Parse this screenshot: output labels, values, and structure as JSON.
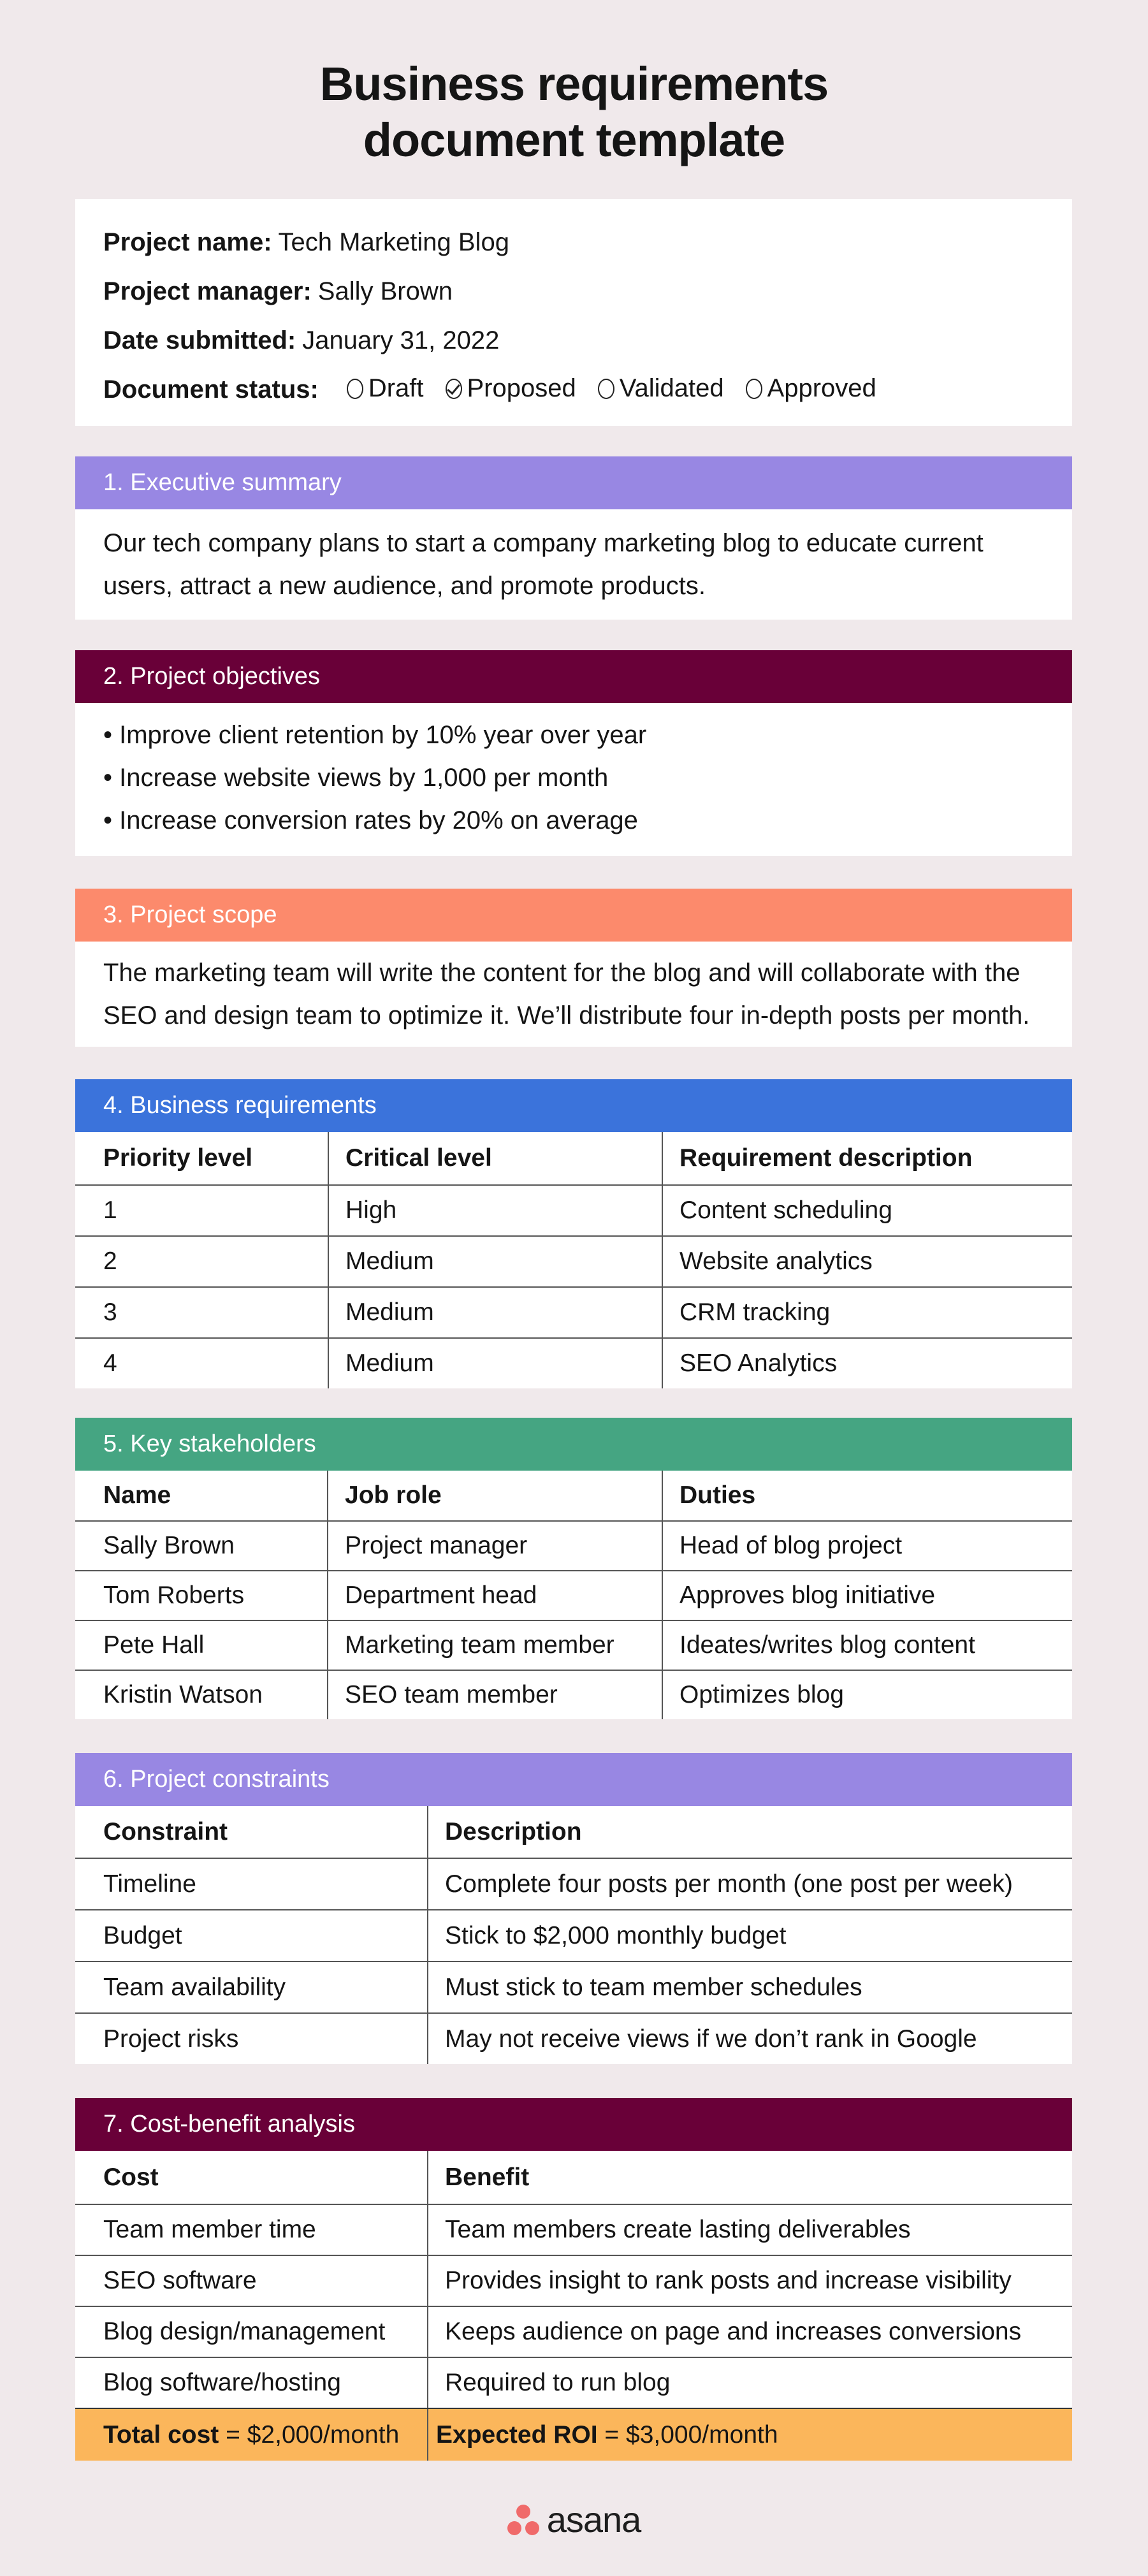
{
  "title_line1": "Business requirements",
  "title_line2": "document template",
  "info": {
    "project_name_label": "Project name:",
    "project_name": "Tech Marketing Blog",
    "manager_label": "Project manager:",
    "manager": "Sally Brown",
    "date_label": "Date submitted:",
    "date": "January 31, 2022",
    "status_label": "Document status:",
    "status_options": [
      {
        "label": "Draft",
        "checked": false
      },
      {
        "label": "Proposed",
        "checked": true
      },
      {
        "label": "Validated",
        "checked": false
      },
      {
        "label": "Approved",
        "checked": false
      }
    ]
  },
  "colors": {
    "lavender": "#9887e3",
    "plum": "#690038",
    "coral": "#fc8a6c",
    "blue": "#3b73db",
    "green": "#45a582",
    "total": "#fbb65b",
    "background": "#f0e9eb"
  },
  "s1": {
    "title": "1. Executive summary",
    "lines": [
      "Our tech company plans to start a company marketing blog to educate current",
      "users, attract a new audience, and promote products."
    ]
  },
  "s2": {
    "title": "2. Project objectives",
    "items": [
      "• Improve client retention by 10% year over year",
      "• Increase website views by 1,000 per month",
      "• Increase conversion rates by 20% on average"
    ]
  },
  "s3": {
    "title": "3. Project scope",
    "lines": [
      "The marketing team will write the content for the blog and will collaborate with the",
      "SEO and design team to optimize it. We’ll distribute four in-depth posts per month."
    ]
  },
  "s4": {
    "title": "4. Business requirements",
    "headers": [
      "Priority level",
      "Critical level",
      "Requirement description"
    ],
    "rows": [
      [
        "1",
        "High",
        "Content scheduling"
      ],
      [
        "2",
        "Medium",
        "Website analytics"
      ],
      [
        "3",
        "Medium",
        "CRM tracking"
      ],
      [
        "4",
        "Medium",
        "SEO Analytics"
      ]
    ]
  },
  "s5": {
    "title": "5. Key stakeholders",
    "headers": [
      "Name",
      "Job role",
      "Duties"
    ],
    "rows": [
      [
        "Sally Brown",
        "Project manager",
        "Head of blog project"
      ],
      [
        "Tom Roberts",
        "Department head",
        "Approves blog initiative"
      ],
      [
        "Pete Hall",
        "Marketing team member",
        "Ideates/writes blog content"
      ],
      [
        "Kristin Watson",
        "SEO team member",
        "Optimizes blog"
      ]
    ]
  },
  "s6": {
    "title": "6. Project constraints",
    "headers": [
      "Constraint",
      "Description"
    ],
    "rows": [
      [
        "Timeline",
        "Complete four posts per month (one post per week)"
      ],
      [
        "Budget",
        "Stick to $2,000 monthly budget"
      ],
      [
        "Team availability",
        "Must stick to team member schedules"
      ],
      [
        "Project risks",
        "May not receive views if we don’t rank in Google"
      ]
    ]
  },
  "s7": {
    "title": "7. Cost-benefit analysis",
    "headers": [
      "Cost",
      "Benefit"
    ],
    "rows": [
      [
        "Team member time",
        "Team members create lasting deliverables"
      ],
      [
        "SEO software",
        "Provides insight to rank posts and increase visibility"
      ],
      [
        "Blog design/management",
        "Keeps audience on page and increases conversions"
      ],
      [
        "Blog software/hosting",
        "Required to run blog"
      ]
    ],
    "total_cost_label": "Total cost",
    "total_cost_value": " = $2,000/month",
    "roi_label": "Expected ROI",
    "roi_value": " = $3,000/month"
  },
  "logo": "asana"
}
